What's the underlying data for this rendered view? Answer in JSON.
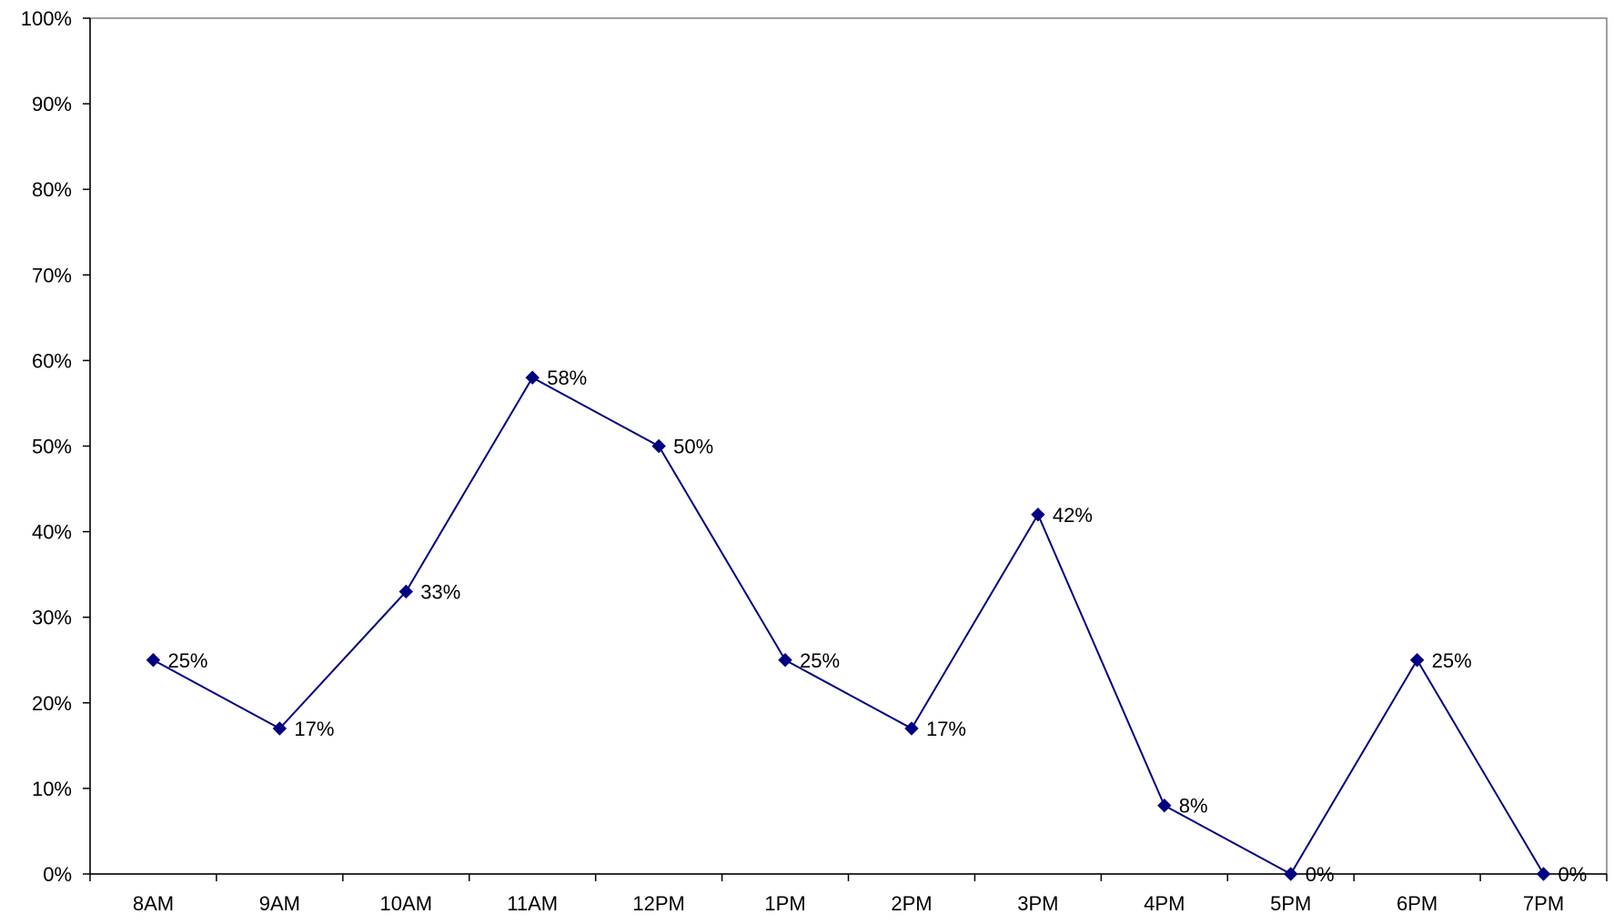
{
  "chart_data": {
    "type": "line",
    "title": "",
    "xlabel": "",
    "ylabel": "",
    "categories": [
      "8AM",
      "9AM",
      "10AM",
      "11AM",
      "12PM",
      "1PM",
      "2PM",
      "3PM",
      "4PM",
      "5PM",
      "6PM",
      "7PM"
    ],
    "series": [
      {
        "values": [
          25,
          17,
          33,
          58,
          50,
          25,
          17,
          42,
          8,
          0,
          25,
          0
        ],
        "data_labels": [
          "25%",
          "17%",
          "33%",
          "58%",
          "50%",
          "25%",
          "17%",
          "42%",
          "8%",
          "0%",
          "25%",
          "0%"
        ],
        "color": "#000080",
        "marker": "diamond"
      }
    ],
    "ylim": [
      0,
      100
    ],
    "y_ticks": [
      0,
      10,
      20,
      30,
      40,
      50,
      60,
      70,
      80,
      90,
      100
    ],
    "y_tick_labels": [
      "0%",
      "10%",
      "20%",
      "30%",
      "40%",
      "50%",
      "60%",
      "70%",
      "80%",
      "90%",
      "100%"
    ],
    "grid": false,
    "legend": "none"
  }
}
